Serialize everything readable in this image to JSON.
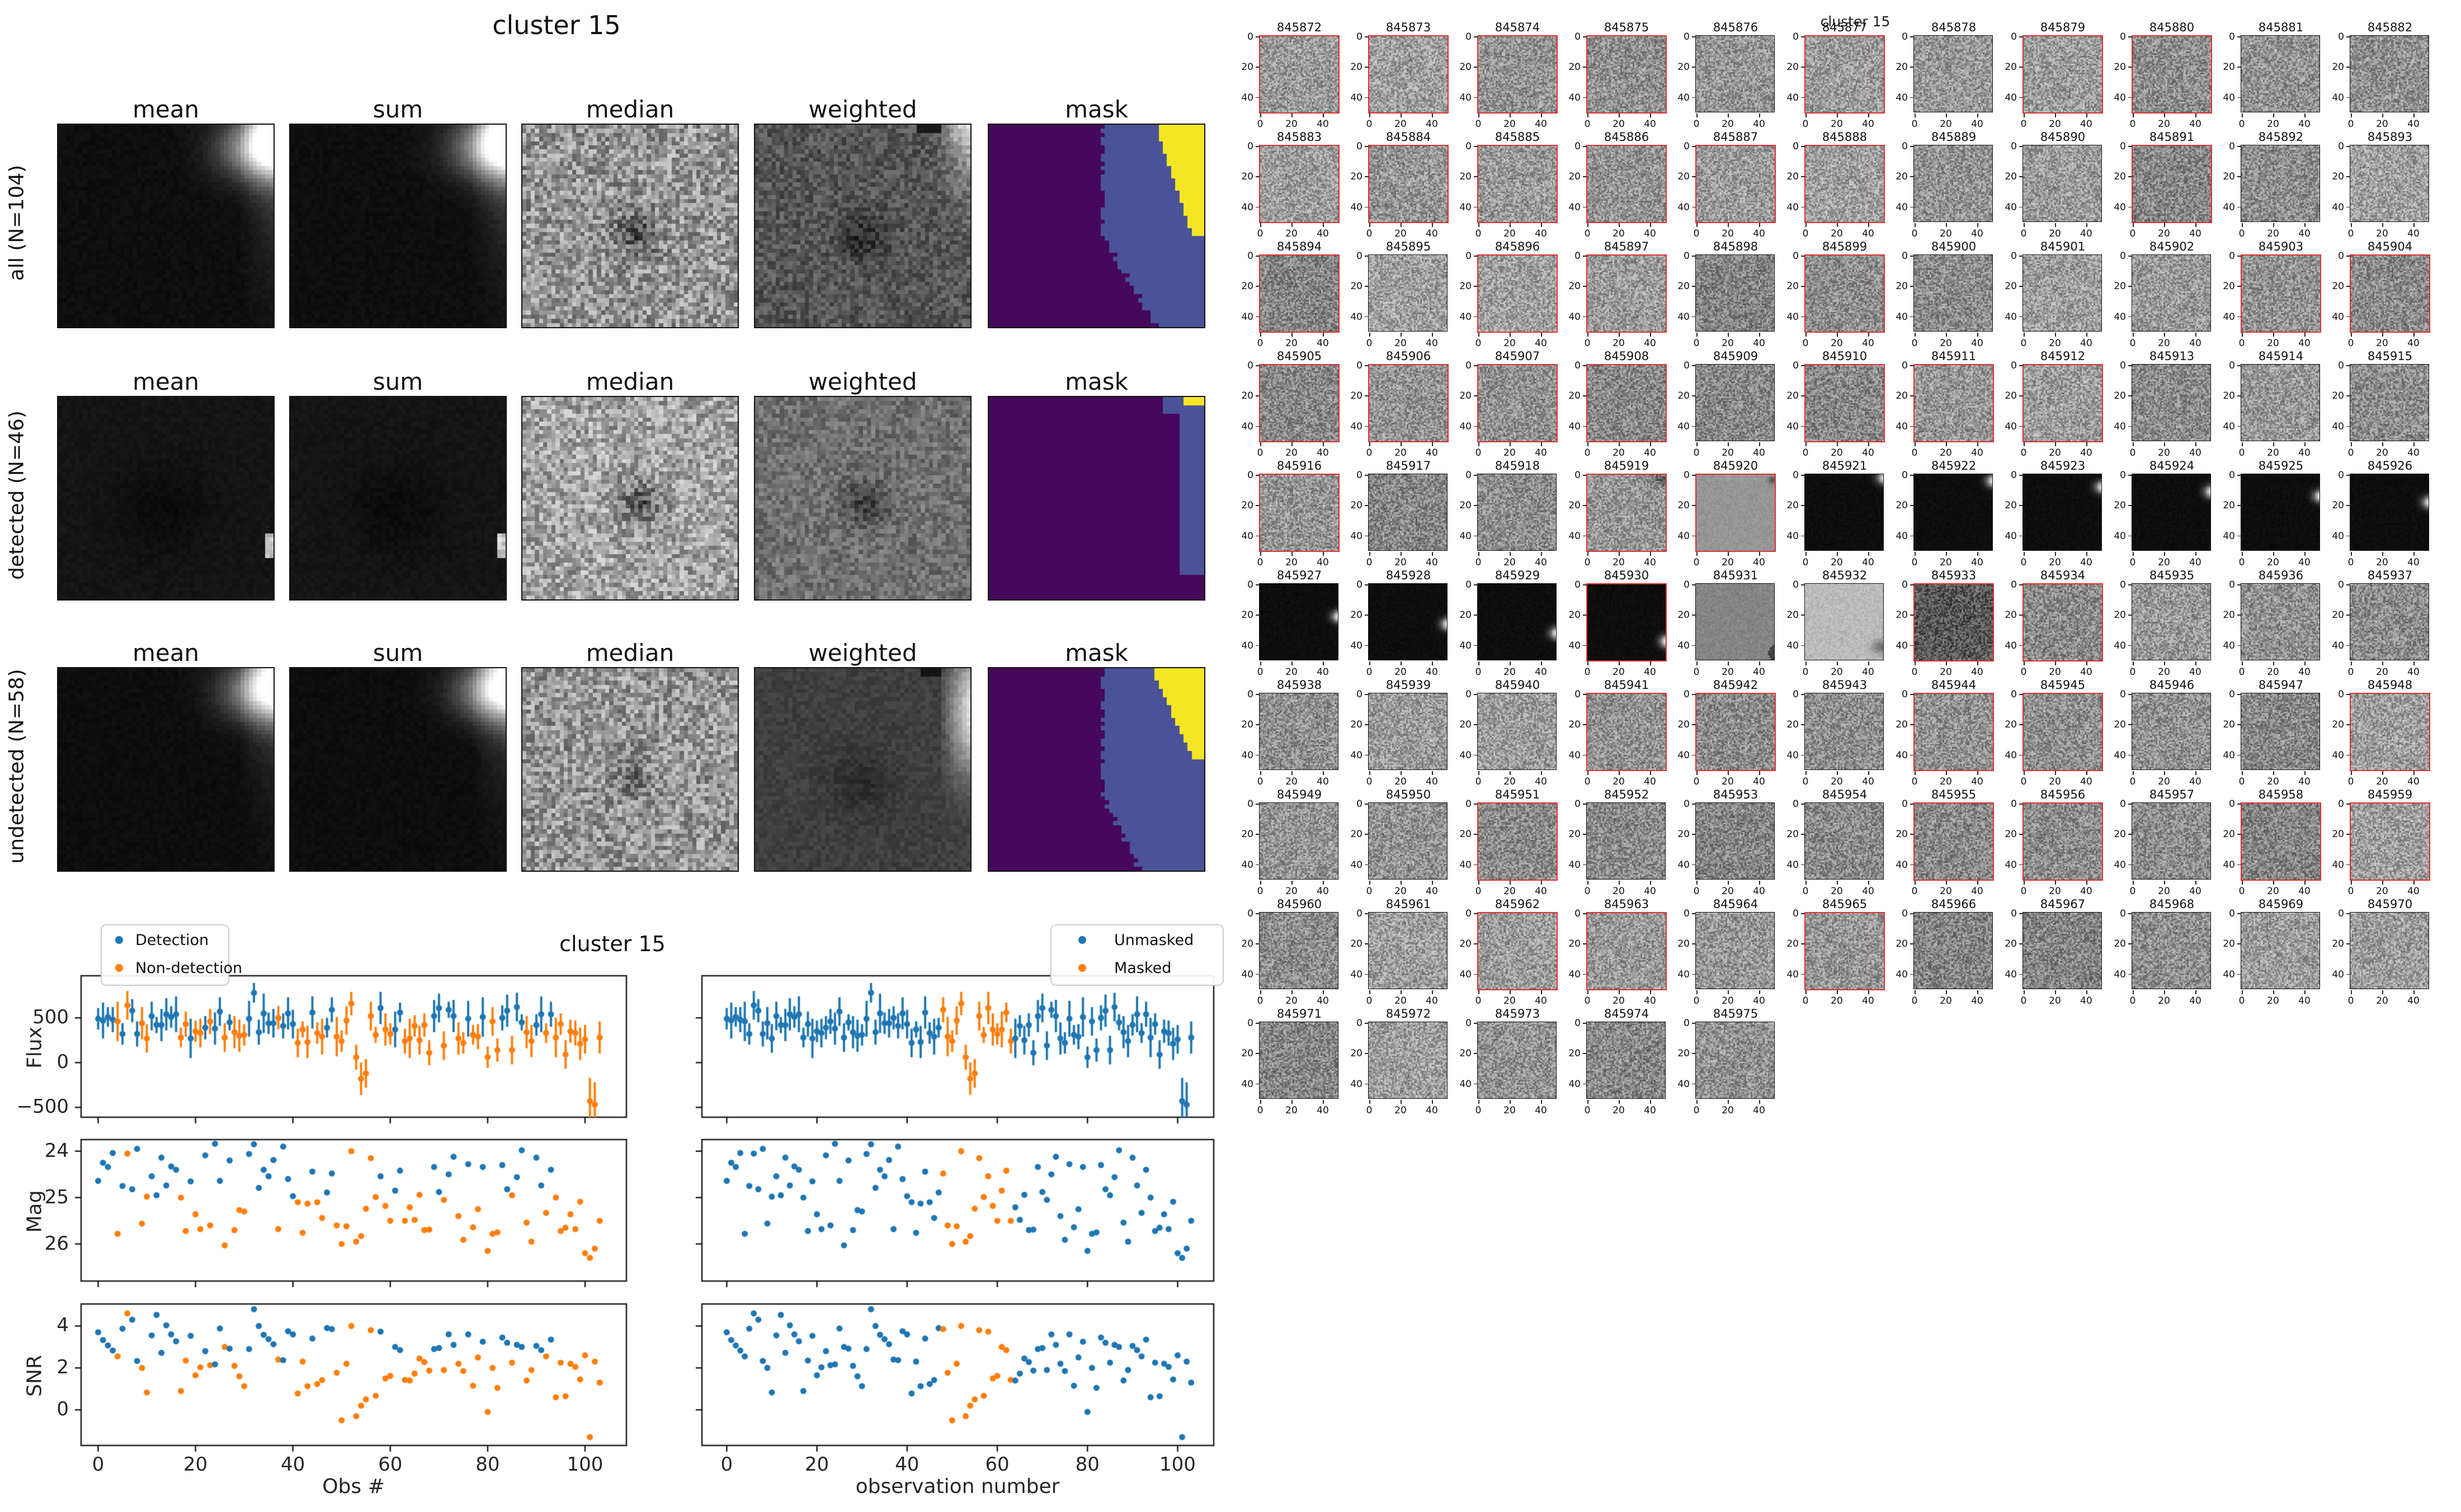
{
  "top_figure": {
    "title": "cluster 15",
    "col_headers": [
      "mean",
      "sum",
      "median",
      "weighted",
      "mask"
    ],
    "rows": [
      {
        "label": "all (N=104)",
        "panels": [
          "stack_corner",
          "stack_corner",
          "median_noise",
          "weighted_corner",
          "mask_wide"
        ]
      },
      {
        "label": "detected (N=46)",
        "panels": [
          "stack_flat",
          "stack_flat",
          "median_bright",
          "weighted_plain",
          "mask_narrow"
        ]
      },
      {
        "label": "undetected (N=58)",
        "panels": [
          "stack_corner_dim",
          "stack_corner_dim",
          "median_faint",
          "weighted_smooth",
          "mask_wide2"
        ]
      }
    ]
  },
  "chart_data": {
    "type": "scatter",
    "suptitle": "cluster 15",
    "ylabels": [
      "Flux",
      "Mag",
      "SNR"
    ],
    "panels": {
      "left": {
        "xlabel": "Obs #",
        "legend": [
          "Detection",
          "Non-detection"
        ],
        "color_by": "detected"
      },
      "right": {
        "xlabel": "observation number",
        "legend": [
          "Unmasked",
          "Masked"
        ],
        "color_by": "masked"
      }
    },
    "xticks": [
      0,
      20,
      40,
      60,
      80,
      100
    ],
    "yticks": {
      "flux": {
        "values": [
          500,
          0,
          -500
        ],
        "labels": [
          "500",
          "0",
          "−500"
        ]
      },
      "mag": {
        "values": [
          24,
          25,
          26
        ],
        "labels": [
          "24",
          "25",
          "26"
        ]
      },
      "snr": {
        "values": [
          4,
          2,
          0
        ],
        "labels": [
          "4",
          "2",
          "0"
        ]
      }
    },
    "ylims": {
      "flux": [
        970,
        -610
      ],
      "mag": [
        23.75,
        26.8
      ],
      "snr": [
        5.05,
        -1.7
      ]
    },
    "xlims": {
      "left": [
        -3.5,
        108.5
      ],
      "right": [
        -5.5,
        108
      ]
    },
    "colors": {
      "blue": "#1f77b4",
      "orange": "#ff7f0e"
    },
    "flux": [
      490,
      470,
      510,
      480,
      460,
      320,
      640,
      580,
      320,
      440,
      270,
      520,
      420,
      420,
      540,
      510,
      540,
      280,
      430,
      270,
      350,
      330,
      390,
      460,
      380,
      570,
      280,
      450,
      340,
      300,
      310,
      490,
      780,
      340,
      550,
      440,
      440,
      500,
      410,
      550,
      430,
      220,
      370,
      230,
      560,
      330,
      290,
      390,
      590,
      290,
      240,
      470,
      660,
      60,
      -180,
      -120,
      520,
      310,
      610,
      370,
      320,
      370,
      560,
      240,
      270,
      410,
      250,
      420,
      110,
      520,
      610,
      190,
      590,
      520,
      270,
      220,
      490,
      310,
      290,
      510,
      60,
      460,
      140,
      500,
      580,
      140,
      620,
      450,
      340,
      240,
      420,
      540,
      330,
      540,
      280,
      430,
      90,
      350,
      330,
      210,
      260,
      -430,
      -470,
      280
    ],
    "flux_err": [
      120,
      200,
      110,
      140,
      220,
      120,
      160,
      130,
      140,
      180,
      160,
      160,
      90,
      180,
      180,
      120,
      200,
      110,
      140,
      220,
      120,
      160,
      130,
      140,
      180,
      160,
      160,
      90,
      180,
      180,
      120,
      200,
      110,
      140,
      220,
      120,
      160,
      130,
      140,
      180,
      160,
      160,
      90,
      180,
      180,
      120,
      200,
      110,
      140,
      220,
      120,
      160,
      130,
      140,
      180,
      160,
      160,
      90,
      180,
      180,
      120,
      200,
      110,
      140,
      220,
      120,
      160,
      130,
      140,
      180,
      160,
      160,
      90,
      180,
      180,
      120,
      200,
      110,
      140,
      220,
      120,
      160,
      130,
      140,
      180,
      160,
      160,
      90,
      180,
      180,
      120,
      200,
      110,
      140,
      220,
      120,
      160,
      130,
      140,
      180,
      160,
      260,
      250,
      180
    ],
    "mag": [
      24.64,
      24.25,
      24.34,
      24.04,
      25.78,
      24.75,
      24.05,
      24.82,
      23.95,
      25.56,
      24.98,
      24.54,
      24.95,
      24.14,
      24.74,
      24.33,
      24.4,
      25.0,
      25.72,
      24.65,
      25.36,
      25.68,
      24.09,
      25.6,
      23.84,
      24.64,
      26.03,
      24.2,
      25.7,
      25.27,
      25.3,
      24.06,
      23.85,
      24.79,
      24.4,
      24.54,
      24.19,
      25.68,
      23.9,
      24.6,
      24.97,
      25.1,
      25.76,
      25.13,
      24.44,
      25.1,
      25.44,
      24.89,
      24.48,
      25.6,
      26.0,
      25.62,
      24.0,
      25.95,
      25.83,
      25.24,
      24.15,
      24.99,
      24.54,
      25.18,
      25.5,
      24.85,
      24.42,
      25.5,
      25.21,
      25.48,
      24.94,
      25.7,
      25.69,
      24.34,
      24.88,
      25.05,
      24.5,
      24.12,
      25.4,
      25.91,
      24.28,
      25.64,
      25.25,
      24.34,
      26.15,
      25.78,
      25.75,
      24.3,
      24.82,
      24.95,
      24.56,
      23.98,
      25.54,
      25.95,
      24.14,
      24.74,
      25.33,
      24.4,
      25.0,
      25.72,
      25.65,
      25.36,
      25.68,
      25.09,
      26.2,
      26.3,
      26.1,
      25.5
    ],
    "snr": [
      3.7,
      3.33,
      3.07,
      2.83,
      2.55,
      3.87,
      4.6,
      4.3,
      2.33,
      2.0,
      0.83,
      3.55,
      4.53,
      2.72,
      4.03,
      3.6,
      3.27,
      0.9,
      2.35,
      3.53,
      1.65,
      2.03,
      2.8,
      2.13,
      2.17,
      3.88,
      3.0,
      2.92,
      2.1,
      1.6,
      1.13,
      2.9,
      4.8,
      4.0,
      3.58,
      3.37,
      3.13,
      2.4,
      2.37,
      3.75,
      3.6,
      0.78,
      2.3,
      1.13,
      3.4,
      1.23,
      1.42,
      3.9,
      3.85,
      1.77,
      -0.5,
      2.2,
      4.0,
      -0.3,
      0.2,
      0.5,
      3.8,
      0.67,
      3.73,
      1.5,
      1.62,
      3.0,
      2.85,
      1.43,
      1.4,
      1.73,
      2.45,
      2.28,
      1.87,
      2.9,
      2.95,
      1.9,
      3.6,
      3.1,
      2.2,
      1.85,
      3.6,
      1.15,
      2.5,
      3.25,
      -0.1,
      2.0,
      1.05,
      3.45,
      3.2,
      2.25,
      3.1,
      3.0,
      1.4,
      1.9,
      3.05,
      2.85,
      2.55,
      3.35,
      0.6,
      2.25,
      0.65,
      2.2,
      2.05,
      1.45,
      2.6,
      -1.3,
      2.3,
      1.3
    ],
    "detected": [
      1,
      1,
      1,
      1,
      0,
      1,
      0,
      1,
      1,
      0,
      0,
      1,
      1,
      1,
      1,
      1,
      1,
      0,
      0,
      1,
      0,
      0,
      1,
      0,
      1,
      1,
      0,
      1,
      0,
      0,
      0,
      1,
      1,
      1,
      1,
      1,
      1,
      0,
      1,
      1,
      1,
      0,
      0,
      0,
      1,
      0,
      0,
      1,
      1,
      0,
      0,
      0,
      0,
      0,
      0,
      0,
      0,
      0,
      1,
      0,
      0,
      1,
      1,
      0,
      0,
      0,
      0,
      0,
      0,
      1,
      1,
      0,
      1,
      1,
      0,
      0,
      1,
      0,
      0,
      1,
      0,
      0,
      0,
      1,
      1,
      0,
      1,
      1,
      0,
      0,
      1,
      1,
      0,
      1,
      0,
      0,
      0,
      0,
      0,
      0,
      0,
      0,
      0,
      0
    ],
    "masked_obs_range": [
      48,
      63
    ]
  },
  "thumbs": {
    "suptitle": "cluster 15",
    "start_id": 845872,
    "count": 104,
    "columns": 11,
    "xtick_labels": [
      "0",
      "20",
      "40"
    ],
    "ytick_labels": [
      "0",
      "20",
      "40"
    ],
    "detected_border_color": "#e03131",
    "normal_border_color": "#111111",
    "variants": {
      "845919": "noise_smudge",
      "845920": "flat_mid",
      "845921": "sky:2",
      "845922": "sky:4",
      "845923": "sky:8",
      "845924": "sky:11",
      "845925": "sky:14",
      "845926": "sky:18",
      "845927": "sky:21",
      "845928": "sky:26",
      "845929": "sky:32",
      "845930": "sky:37",
      "845931": "flat_dark_line",
      "845932": "flat_light",
      "845933": "noise_dark"
    }
  },
  "mask_colors": {
    "purple": "#45085b",
    "blue": "#4a5397",
    "yellow": "#f4e625"
  }
}
